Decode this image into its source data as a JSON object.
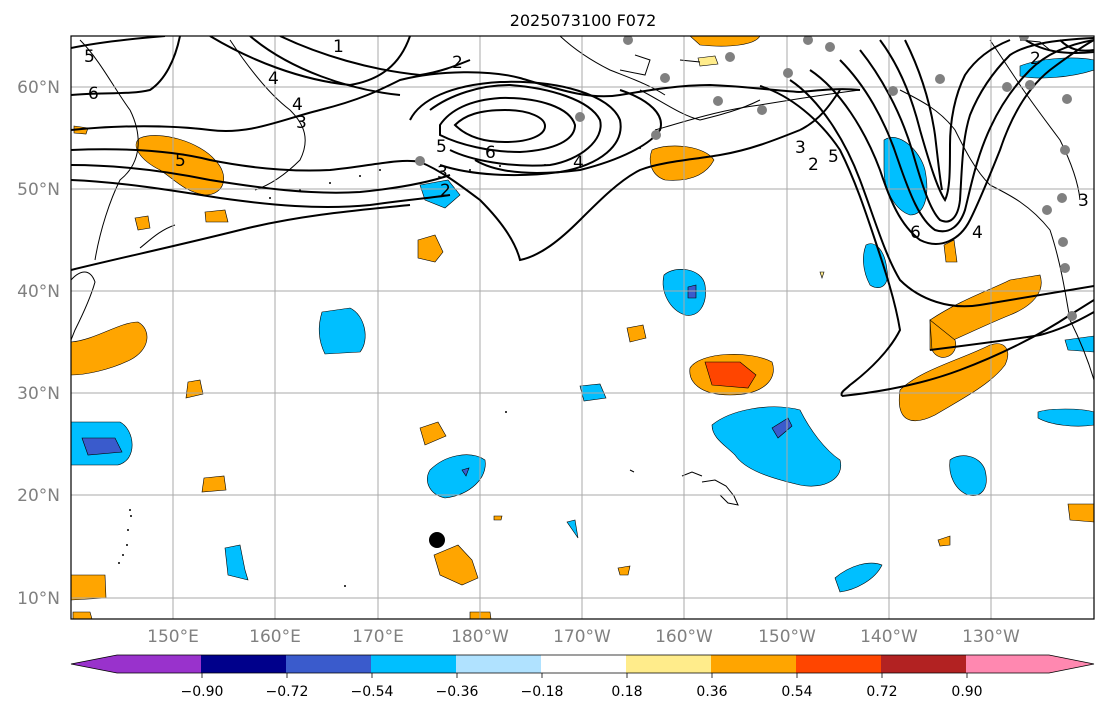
{
  "title": "2025073100 F072",
  "map": {
    "lat_labels": [
      "60°N",
      "50°N",
      "40°N",
      "30°N",
      "20°N",
      "10°N"
    ],
    "lon_labels": [
      "150°E",
      "160°E",
      "170°E",
      "180°W",
      "170°W",
      "160°W",
      "150°W",
      "140°W",
      "130°W"
    ],
    "contour_labels": [
      "5",
      "6",
      "1",
      "2",
      "4",
      "5",
      "5",
      "6",
      "3",
      "4",
      "3",
      "2",
      "5",
      "6",
      "4",
      "2",
      "3",
      "4",
      "3",
      "2"
    ]
  },
  "colorbar": {
    "colors": [
      "#9932cc",
      "#00008b",
      "#3a5bcc",
      "#00bfff",
      "#b0e2ff",
      "#ffffff",
      "#ffec8b",
      "#ffa500",
      "#ff4500",
      "#b22222",
      "#ff88b0"
    ],
    "tick_labels": [
      "−0.90",
      "−0.72",
      "−0.54",
      "−0.36",
      "−0.18",
      "0.18",
      "0.36",
      "0.54",
      "0.72",
      "0.90"
    ]
  }
}
